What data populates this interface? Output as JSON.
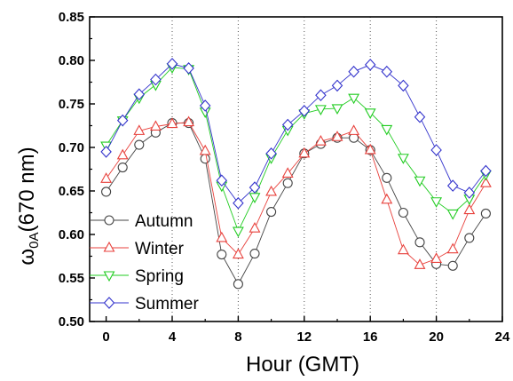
{
  "chart_data": {
    "type": "line",
    "title": "",
    "xlabel": "Hour (GMT)",
    "ylabel_main": "ω",
    "ylabel_sub": "0A",
    "ylabel_rest": "(670 nm)",
    "xlim": [
      -1,
      24
    ],
    "ylim": [
      0.5,
      0.85
    ],
    "xticks": [
      0,
      4,
      8,
      12,
      16,
      20,
      24
    ],
    "xtick_labels": [
      "0",
      "4",
      "8",
      "12",
      "16",
      "20",
      "24"
    ],
    "yticks": [
      0.5,
      0.55,
      0.6,
      0.65,
      0.7,
      0.75,
      0.8,
      0.85
    ],
    "ytick_labels": [
      "0.50",
      "0.55",
      "0.60",
      "0.65",
      "0.70",
      "0.75",
      "0.80",
      "0.85"
    ],
    "vertical_gridlines_at": [
      4,
      8,
      12,
      16,
      20
    ],
    "legend_position": "lower-left",
    "x": [
      0,
      1,
      2,
      3,
      4,
      5,
      6,
      7,
      8,
      9,
      10,
      11,
      12,
      13,
      14,
      15,
      16,
      17,
      18,
      19,
      20,
      21,
      22,
      23
    ],
    "series": [
      {
        "name": "Autumn",
        "marker": "circle",
        "color": "#444444",
        "values": [
          0.649,
          0.677,
          0.703,
          0.717,
          0.728,
          0.728,
          0.687,
          0.577,
          0.543,
          0.578,
          0.626,
          0.659,
          0.693,
          0.704,
          0.711,
          0.711,
          0.697,
          0.665,
          0.625,
          0.591,
          0.566,
          0.564,
          0.596,
          0.624
        ]
      },
      {
        "name": "Winter",
        "marker": "triangle-up",
        "color": "#e8413c",
        "values": [
          0.664,
          0.691,
          0.719,
          0.724,
          0.727,
          0.729,
          0.696,
          0.596,
          0.577,
          0.607,
          0.649,
          0.67,
          0.693,
          0.707,
          0.712,
          0.719,
          0.697,
          0.64,
          0.582,
          0.565,
          0.572,
          0.583,
          0.628,
          0.659
        ]
      },
      {
        "name": "Spring",
        "marker": "triangle-down",
        "color": "#22cc22",
        "values": [
          0.702,
          0.731,
          0.757,
          0.772,
          0.792,
          0.79,
          0.741,
          0.656,
          0.604,
          0.643,
          0.688,
          0.72,
          0.739,
          0.744,
          0.745,
          0.757,
          0.74,
          0.721,
          0.688,
          0.662,
          0.638,
          0.624,
          0.641,
          0.669
        ]
      },
      {
        "name": "Summer",
        "marker": "diamond",
        "color": "#3333cc",
        "values": [
          0.695,
          0.731,
          0.761,
          0.778,
          0.796,
          0.791,
          0.748,
          0.662,
          0.636,
          0.654,
          0.693,
          0.726,
          0.742,
          0.76,
          0.771,
          0.787,
          0.795,
          0.787,
          0.771,
          0.735,
          0.697,
          0.656,
          0.648,
          0.673
        ]
      }
    ]
  }
}
